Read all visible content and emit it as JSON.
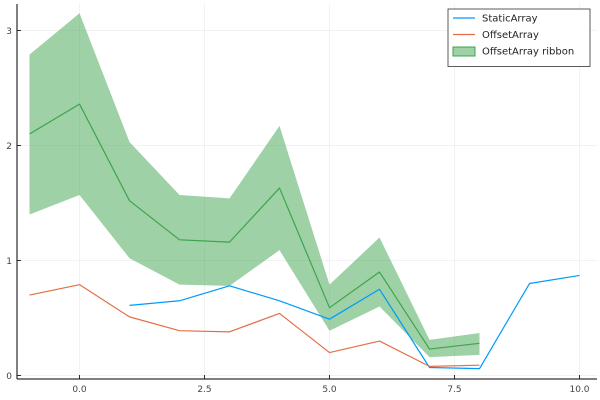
{
  "chart_data": {
    "type": "line",
    "title": "",
    "xlabel": "",
    "ylabel": "",
    "xlim": [
      -1.25,
      10.35
    ],
    "ylim": [
      -0.03,
      3.23
    ],
    "grid": true,
    "legend_position": "top-right",
    "x_ticks": [
      {
        "value": 0.0,
        "label": "0.0"
      },
      {
        "value": 2.5,
        "label": "2.5"
      },
      {
        "value": 5.0,
        "label": "5.0"
      },
      {
        "value": 7.5,
        "label": "7.5"
      },
      {
        "value": 10.0,
        "label": "10.0"
      }
    ],
    "y_ticks": [
      {
        "value": 0,
        "label": "0"
      },
      {
        "value": 1,
        "label": "1"
      },
      {
        "value": 2,
        "label": "2"
      },
      {
        "value": 3,
        "label": "3"
      }
    ],
    "series": [
      {
        "name": "StaticArray",
        "kind": "line",
        "color": "#009AFA",
        "x": [
          1,
          2,
          3,
          4,
          5,
          6,
          7,
          8,
          9,
          10
        ],
        "y": [
          0.61,
          0.65,
          0.78,
          0.65,
          0.49,
          0.75,
          0.07,
          0.06,
          0.8,
          0.87
        ]
      },
      {
        "name": "OffsetArray",
        "kind": "line",
        "color": "#E26F46",
        "x": [
          -1,
          0,
          1,
          2,
          3,
          4,
          5,
          6,
          7,
          8
        ],
        "y": [
          0.7,
          0.79,
          0.51,
          0.39,
          0.38,
          0.54,
          0.2,
          0.3,
          0.08,
          0.09
        ]
      },
      {
        "name": "OffsetArray ribbon",
        "kind": "ribbon",
        "color": "#3DA44D",
        "fill_color": "#3DA44D",
        "fill_opacity": 0.5,
        "x": [
          -1,
          0,
          1,
          2,
          3,
          4,
          5,
          6,
          7,
          8
        ],
        "y": [
          2.1,
          2.36,
          1.52,
          1.18,
          1.16,
          1.63,
          0.59,
          0.9,
          0.23,
          0.28
        ],
        "lower": [
          1.4,
          1.57,
          1.02,
          0.79,
          0.78,
          1.09,
          0.39,
          0.6,
          0.16,
          0.18
        ],
        "upper": [
          2.79,
          3.15,
          2.03,
          1.57,
          1.54,
          2.17,
          0.79,
          1.2,
          0.31,
          0.37
        ]
      }
    ]
  }
}
